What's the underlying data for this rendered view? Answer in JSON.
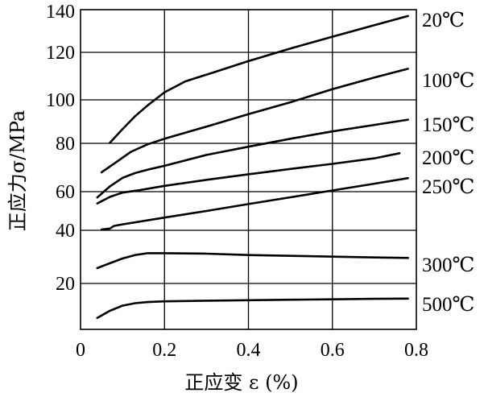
{
  "chart_data": {
    "type": "line",
    "xlabel": "正应变 ε (%)",
    "ylabel": "正应力σ/MPa",
    "xlim": [
      0,
      0.8
    ],
    "ylim": [
      0,
      140
    ],
    "x_ticks": [
      {
        "value": 0,
        "label": "0"
      },
      {
        "value": 0.2,
        "label": "0.2"
      },
      {
        "value": 0.4,
        "label": "0.4"
      },
      {
        "value": 0.6,
        "label": "0.6"
      },
      {
        "value": 0.8,
        "label": "0.8"
      }
    ],
    "y_ticks": [
      {
        "value": 140,
        "label": "140"
      },
      {
        "value": 120,
        "label": "120"
      },
      {
        "value": 100,
        "label": "100"
      },
      {
        "value": 80,
        "label": "80"
      },
      {
        "value": 60,
        "label": "60"
      },
      {
        "value": 40,
        "label": "40"
      },
      {
        "value": 20,
        "label": "20"
      }
    ],
    "grid": true,
    "series": [
      {
        "name": "20℃",
        "x": [
          0.07,
          0.1,
          0.13,
          0.16,
          0.2,
          0.25,
          0.3,
          0.4,
          0.5,
          0.6,
          0.7,
          0.78
        ],
        "y": [
          80.3,
          86.5,
          92.5,
          97.5,
          103.2,
          107.8,
          110.6,
          116.3,
          121.9,
          127.6,
          133.2,
          137.7
        ]
      },
      {
        "name": "100℃",
        "x": [
          0.05,
          0.08,
          0.12,
          0.16,
          0.2,
          0.3,
          0.4,
          0.5,
          0.6,
          0.7,
          0.78
        ],
        "y": [
          68,
          71.6,
          76.5,
          79.6,
          82.1,
          87.7,
          93.4,
          98.9,
          104.5,
          109.4,
          113.1
        ]
      },
      {
        "name": "150℃",
        "x": [
          0.04,
          0.07,
          0.1,
          0.13,
          0.16,
          0.2,
          0.3,
          0.4,
          0.5,
          0.6,
          0.7,
          0.78
        ],
        "y": [
          57,
          62.2,
          65.7,
          67.7,
          69.1,
          70.7,
          75.2,
          78.6,
          82.1,
          85.5,
          88.5,
          90.9
        ]
      },
      {
        "name": "200℃",
        "x": [
          0.04,
          0.07,
          0.1,
          0.14,
          0.2,
          0.3,
          0.4,
          0.5,
          0.6,
          0.7,
          0.76
        ],
        "y": [
          53.9,
          57.3,
          59.5,
          60.6,
          62.4,
          64.9,
          67.2,
          69.4,
          71.5,
          73.8,
          75.9
        ]
      },
      {
        "name": "250℃",
        "x": [
          0.05,
          0.07,
          0.08,
          0.1,
          0.2,
          0.3,
          0.4,
          0.5,
          0.6,
          0.7,
          0.78
        ],
        "y": [
          40.4,
          40.9,
          42.3,
          43.1,
          46.6,
          50,
          53.6,
          57.1,
          60.5,
          63.3,
          65.6
        ]
      },
      {
        "name": "300℃",
        "x": [
          0.04,
          0.07,
          0.1,
          0.13,
          0.16,
          0.2,
          0.3,
          0.4,
          0.5,
          0.6,
          0.7,
          0.78
        ],
        "y": [
          25.8,
          27.6,
          29.4,
          30.7,
          31.4,
          31.4,
          31.2,
          30.7,
          30.4,
          30.1,
          29.8,
          29.6
        ]
      },
      {
        "name": "500℃",
        "x": [
          0.04,
          0.07,
          0.1,
          0.13,
          0.16,
          0.2,
          0.3,
          0.4,
          0.5,
          0.6,
          0.7,
          0.78
        ],
        "y": [
          5,
          8.1,
          10.3,
          11.4,
          11.9,
          12.2,
          12.5,
          12.7,
          12.9,
          13.1,
          13.3,
          13.4
        ]
      }
    ]
  }
}
